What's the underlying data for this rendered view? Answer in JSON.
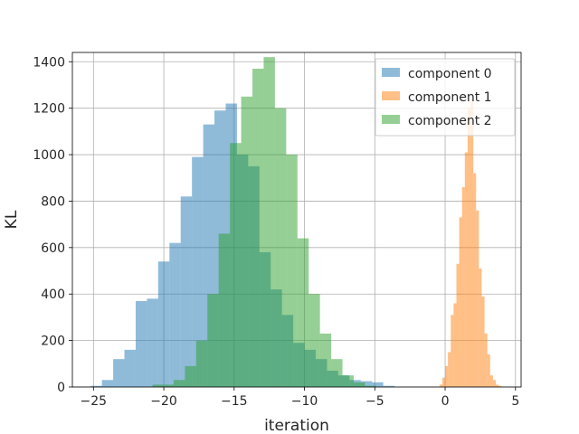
{
  "chart_data": {
    "type": "bar",
    "title": "",
    "xlabel": "iteration",
    "ylabel": "KL",
    "xlim": [
      -26.5,
      5.4
    ],
    "ylim": [
      0,
      1440
    ],
    "xticks": [
      -25,
      -20,
      -15,
      -10,
      -5,
      0,
      5
    ],
    "yticks": [
      0,
      200,
      400,
      600,
      800,
      1000,
      1200,
      1400
    ],
    "grid": true,
    "legend_position": "top-right",
    "opacity": 0.5,
    "series": [
      {
        "name": "component 0",
        "color": "#1f77b4",
        "bins": [
          [
            -25.2,
            -24.4,
            5
          ],
          [
            -24.4,
            -23.6,
            30
          ],
          [
            -23.6,
            -22.8,
            120
          ],
          [
            -22.8,
            -22.0,
            160
          ],
          [
            -22.0,
            -21.2,
            370
          ],
          [
            -21.2,
            -20.4,
            380
          ],
          [
            -20.4,
            -19.6,
            540
          ],
          [
            -19.6,
            -18.8,
            620
          ],
          [
            -18.8,
            -18.0,
            820
          ],
          [
            -18.0,
            -17.2,
            990
          ],
          [
            -17.2,
            -16.4,
            1130
          ],
          [
            -16.4,
            -15.6,
            1190
          ],
          [
            -15.6,
            -14.8,
            1220
          ],
          [
            -14.8,
            -14.0,
            1000
          ],
          [
            -14.0,
            -13.2,
            950
          ],
          [
            -13.2,
            -12.4,
            580
          ],
          [
            -12.4,
            -11.6,
            420
          ],
          [
            -11.6,
            -10.8,
            310
          ],
          [
            -10.8,
            -10.0,
            190
          ],
          [
            -10.0,
            -9.2,
            160
          ],
          [
            -9.2,
            -8.4,
            120
          ],
          [
            -8.4,
            -7.6,
            70
          ],
          [
            -7.6,
            -6.8,
            50
          ],
          [
            -6.8,
            -6.0,
            30
          ],
          [
            -6.0,
            -5.2,
            25
          ],
          [
            -5.2,
            -4.4,
            20
          ],
          [
            -4.4,
            -3.6,
            5
          ]
        ]
      },
      {
        "name": "component 1",
        "color": "#ff7f0e",
        "bins": [
          [
            -0.4,
            -0.2,
            10
          ],
          [
            -0.2,
            0.0,
            40
          ],
          [
            0.0,
            0.2,
            90
          ],
          [
            0.2,
            0.4,
            150
          ],
          [
            0.4,
            0.6,
            310
          ],
          [
            0.6,
            0.8,
            360
          ],
          [
            0.8,
            1.0,
            530
          ],
          [
            1.0,
            1.2,
            730
          ],
          [
            1.2,
            1.4,
            860
          ],
          [
            1.4,
            1.6,
            1010
          ],
          [
            1.6,
            1.8,
            1200
          ],
          [
            1.8,
            2.0,
            1240
          ],
          [
            2.0,
            2.2,
            920
          ],
          [
            2.2,
            2.4,
            760
          ],
          [
            2.4,
            2.6,
            510
          ],
          [
            2.6,
            2.8,
            390
          ],
          [
            2.8,
            3.0,
            230
          ],
          [
            3.0,
            3.2,
            140
          ],
          [
            3.2,
            3.4,
            50
          ],
          [
            3.4,
            3.6,
            30
          ],
          [
            3.6,
            3.8,
            10
          ],
          [
            3.8,
            4.0,
            5
          ]
        ]
      },
      {
        "name": "component 2",
        "color": "#2ca02c",
        "bins": [
          [
            -20.8,
            -19.3,
            10
          ],
          [
            -19.3,
            -18.5,
            30
          ],
          [
            -18.5,
            -17.7,
            90
          ],
          [
            -17.7,
            -16.9,
            200
          ],
          [
            -16.9,
            -16.1,
            400
          ],
          [
            -16.1,
            -15.3,
            660
          ],
          [
            -15.3,
            -14.5,
            1050
          ],
          [
            -14.5,
            -13.7,
            1250
          ],
          [
            -13.7,
            -12.9,
            1370
          ],
          [
            -12.9,
            -12.1,
            1420
          ],
          [
            -12.1,
            -11.3,
            1200
          ],
          [
            -11.3,
            -10.5,
            1000
          ],
          [
            -10.5,
            -9.7,
            640
          ],
          [
            -9.7,
            -8.9,
            400
          ],
          [
            -8.9,
            -8.1,
            230
          ],
          [
            -8.1,
            -7.3,
            120
          ],
          [
            -7.3,
            -6.5,
            50
          ],
          [
            -6.5,
            -5.7,
            20
          ],
          [
            -5.7,
            -4.9,
            5
          ]
        ]
      }
    ]
  }
}
